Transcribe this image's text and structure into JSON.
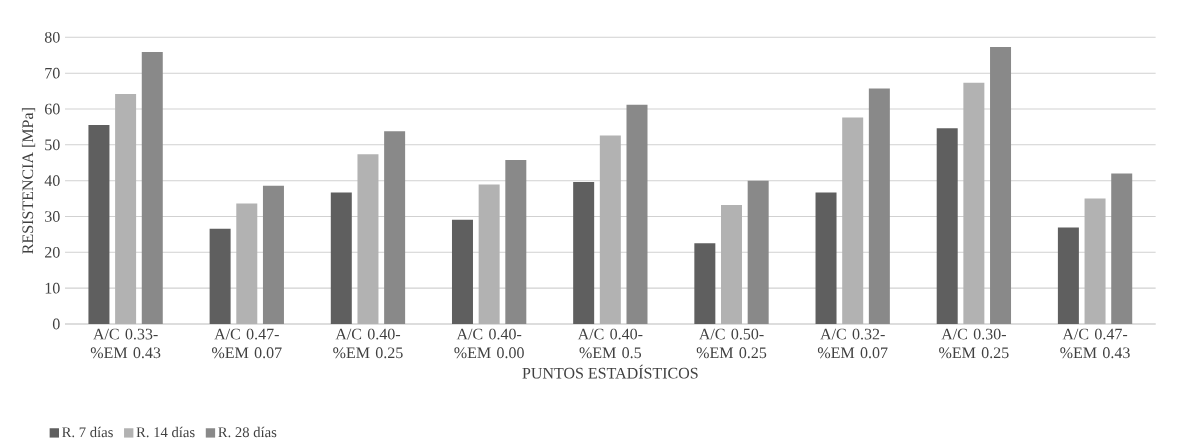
{
  "chart_data": {
    "type": "bar",
    "xlabel": "PUNTOS ESTADÍSTICOS",
    "ylabel": "RESISTENCIA [MPa]",
    "categories": [
      "A/C 0.33- %EM 0.43",
      "A/C 0.47- %EM 0.07",
      "A/C 0.40- %EM 0.25",
      "A/C 0.40- %EM 0.00",
      "A/C 0.40- %EM 0.5",
      "A/C 0.50- %EM 0.25",
      "A/C 0.32- %EM 0.07",
      "A/C 0.30- %EM 0.25",
      "A/C 0.47- %EM 0.43"
    ],
    "series": [
      {
        "name": "R. 7 días",
        "color": "#5f5f5f",
        "values": [
          55.5,
          26.6,
          36.7,
          29.1,
          39.6,
          22.5,
          36.7,
          54.6,
          26.9
        ]
      },
      {
        "name": "R. 14 días",
        "color": "#b2b2b2",
        "values": [
          64.2,
          33.6,
          47.4,
          38.9,
          52.6,
          33.2,
          57.6,
          67.3,
          35.0
        ]
      },
      {
        "name": "R. 28 días",
        "color": "#898989",
        "values": [
          75.9,
          38.6,
          53.8,
          45.8,
          61.2,
          40.0,
          65.7,
          77.3,
          42.0
        ]
      }
    ],
    "ylim": [
      0,
      80
    ],
    "yticks": [
      0,
      10,
      20,
      30,
      40,
      50,
      60,
      70,
      80
    ],
    "grid": "y",
    "legend": "bottom left"
  }
}
